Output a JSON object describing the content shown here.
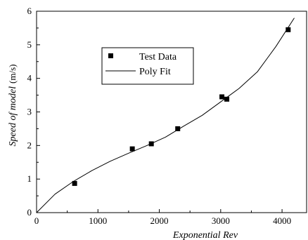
{
  "chart_data": {
    "type": "scatter",
    "title": "",
    "xlabel": "Exponential Rev",
    "ylabel": "Speed of model",
    "ylabel_unit": "(m/s)",
    "xlim": [
      0,
      4400
    ],
    "ylim": [
      0,
      6
    ],
    "xticks": [
      0,
      1000,
      2000,
      3000,
      4000
    ],
    "yticks": [
      0,
      1,
      2,
      3,
      4,
      5,
      6
    ],
    "grid": false,
    "legend_position": "top-left",
    "series": [
      {
        "name": "Test Data",
        "type": "scatter",
        "marker": "square",
        "color": "#000000",
        "x": [
          620,
          1560,
          1870,
          2300,
          3020,
          3100,
          4100
        ],
        "y": [
          0.87,
          1.9,
          2.05,
          2.5,
          3.45,
          3.38,
          5.45
        ]
      },
      {
        "name": "Poly Fit",
        "type": "line",
        "color": "#000000",
        "x": [
          0,
          300,
          600,
          900,
          1200,
          1500,
          1800,
          2100,
          2400,
          2700,
          3000,
          3300,
          3600,
          3900,
          4200
        ],
        "y": [
          0,
          0.55,
          0.93,
          1.25,
          1.53,
          1.77,
          2.0,
          2.25,
          2.58,
          2.9,
          3.3,
          3.7,
          4.2,
          4.95,
          5.8
        ]
      }
    ]
  }
}
